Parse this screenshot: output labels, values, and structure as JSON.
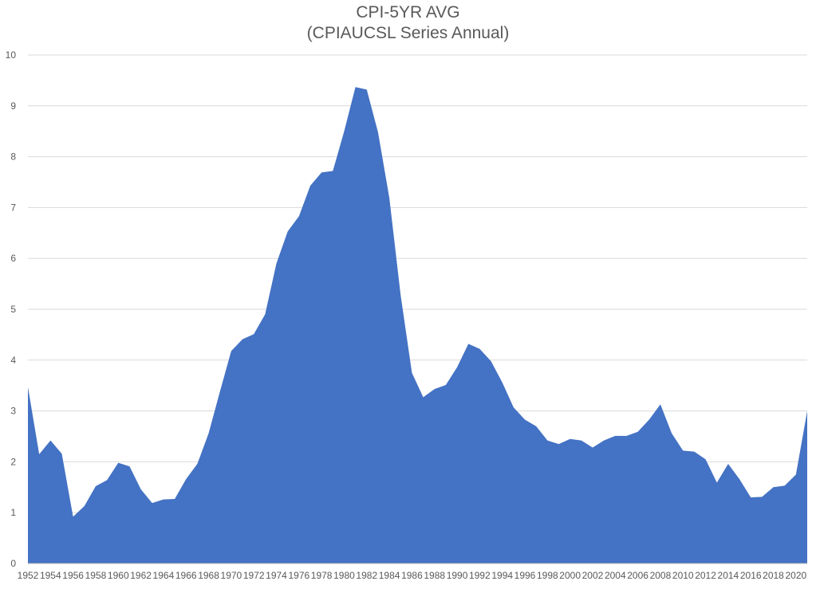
{
  "chart_data": {
    "type": "area",
    "title": "CPI-5YR AVG",
    "subtitle": "(CPIAUCSL Series Annual)",
    "xlabel": "",
    "ylabel": "",
    "ylim": [
      0,
      10
    ],
    "yticks": [
      0,
      1,
      2,
      3,
      4,
      5,
      6,
      7,
      8,
      9,
      10
    ],
    "grid": true,
    "legend": "none",
    "color": "#4472C4",
    "x": [
      1952,
      1953,
      1954,
      1955,
      1956,
      1957,
      1958,
      1959,
      1960,
      1961,
      1962,
      1963,
      1964,
      1965,
      1966,
      1967,
      1968,
      1969,
      1970,
      1971,
      1972,
      1973,
      1974,
      1975,
      1976,
      1977,
      1978,
      1979,
      1980,
      1981,
      1982,
      1983,
      1984,
      1985,
      1986,
      1987,
      1988,
      1989,
      1990,
      1991,
      1992,
      1993,
      1994,
      1995,
      1996,
      1997,
      1998,
      1999,
      2000,
      2001,
      2002,
      2003,
      2004,
      2005,
      2006,
      2007,
      2008,
      2009,
      2010,
      2011,
      2012,
      2013,
      2014,
      2015,
      2016,
      2017,
      2018,
      2019,
      2020,
      2021
    ],
    "xtick_labels": [
      "1952",
      "1954",
      "1956",
      "1958",
      "1960",
      "1962",
      "1964",
      "1966",
      "1968",
      "1970",
      "1972",
      "1974",
      "1976",
      "1978",
      "1980",
      "1982",
      "1984",
      "1986",
      "1988",
      "1990",
      "1992",
      "1994",
      "1996",
      "1998",
      "2000",
      "2002",
      "2004",
      "2006",
      "2008",
      "2010",
      "2012",
      "2014",
      "2016",
      "2018",
      "2020"
    ],
    "series": [
      {
        "values": [
          3.47,
          2.15,
          2.42,
          2.16,
          0.92,
          1.13,
          1.52,
          1.64,
          1.98,
          1.91,
          1.46,
          1.19,
          1.26,
          1.27,
          1.66,
          1.96,
          2.56,
          3.38,
          4.18,
          4.41,
          4.51,
          4.9,
          5.9,
          6.53,
          6.83,
          7.43,
          7.69,
          7.72,
          8.5,
          9.37,
          9.32,
          8.48,
          7.19,
          5.28,
          3.75,
          3.27,
          3.43,
          3.51,
          3.86,
          4.32,
          4.22,
          3.98,
          3.56,
          3.07,
          2.83,
          2.7,
          2.42,
          2.35,
          2.45,
          2.42,
          2.28,
          2.42,
          2.51,
          2.51,
          2.59,
          2.83,
          3.13,
          2.56,
          2.22,
          2.2,
          2.05,
          1.59,
          1.96,
          1.66,
          1.3,
          1.31,
          1.5,
          1.53,
          1.75,
          3.0
        ]
      }
    ]
  }
}
